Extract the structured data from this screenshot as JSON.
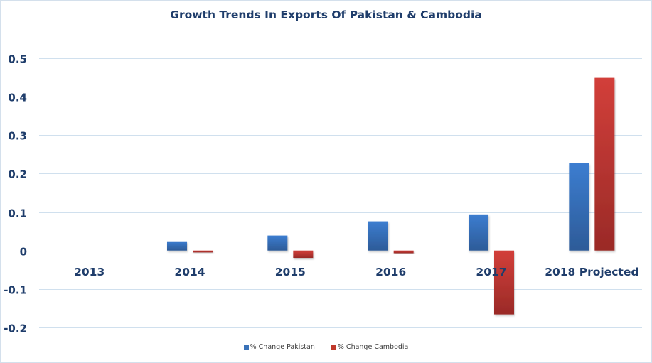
{
  "chart_data": {
    "type": "bar",
    "title": "Growth Trends In Exports Of Pakistan & Cambodia",
    "xlabel": "",
    "ylabel": "",
    "categories": [
      "2013",
      "2014",
      "2015",
      "2016",
      "2017",
      "2018 Projected"
    ],
    "series": [
      {
        "name": "% Change Pakistan",
        "color": "#3a72b8",
        "values": [
          0,
          0.024,
          0.039,
          0.076,
          0.094,
          0.227
        ]
      },
      {
        "name": "% Change Cambodia",
        "color": "#c0392b",
        "values": [
          0,
          -0.005,
          -0.019,
          -0.007,
          -0.166,
          0.449
        ]
      }
    ],
    "ylim": [
      -0.2,
      0.5
    ],
    "yticks": [
      "-0.2",
      "-0.1",
      "0",
      "0.1",
      "0.2",
      "0.3",
      "0.4",
      "0.5"
    ],
    "ytick_values": [
      -0.2,
      -0.1,
      0,
      0.1,
      0.2,
      0.3,
      0.4,
      0.5
    ],
    "grid": true,
    "legend_position": "bottom"
  }
}
